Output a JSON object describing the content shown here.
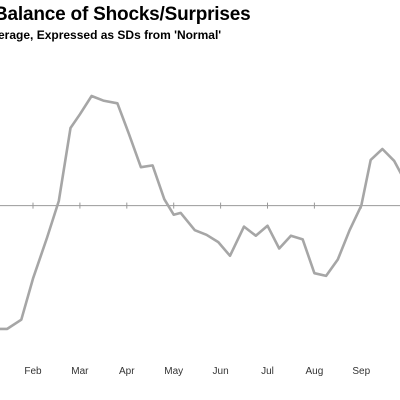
{
  "chart_data": {
    "type": "line",
    "title": "Balance of Shocks/Surprises",
    "subtitle": "erage, Expressed as SDs from  'Normal'",
    "xlabel": "",
    "ylabel": "",
    "x_ticks": [
      "Feb",
      "Mar",
      "Apr",
      "May",
      "Jun",
      "Jul",
      "Aug",
      "Sep"
    ],
    "baseline": 0,
    "ylim": [
      -1.45,
      1.2
    ],
    "grid": false,
    "line_color": "#a6a6a6",
    "baseline_color": "#999999",
    "series": [
      {
        "name": "",
        "points": [
          {
            "x": 0.0,
            "y": -1.25
          },
          {
            "x": 0.2,
            "y": -1.35
          },
          {
            "x": 0.45,
            "y": -1.35
          },
          {
            "x": 0.75,
            "y": -1.25
          },
          {
            "x": 1.0,
            "y": -0.8
          },
          {
            "x": 1.3,
            "y": -0.35
          },
          {
            "x": 1.55,
            "y": 0.05
          },
          {
            "x": 1.8,
            "y": 0.85
          },
          {
            "x": 2.0,
            "y": 1.0
          },
          {
            "x": 2.25,
            "y": 1.2
          },
          {
            "x": 2.5,
            "y": 1.15
          },
          {
            "x": 2.8,
            "y": 1.12
          },
          {
            "x": 3.05,
            "y": 0.78
          },
          {
            "x": 3.3,
            "y": 0.42
          },
          {
            "x": 3.55,
            "y": 0.44
          },
          {
            "x": 3.8,
            "y": 0.07
          },
          {
            "x": 4.0,
            "y": -0.1
          },
          {
            "x": 4.15,
            "y": -0.08
          },
          {
            "x": 4.45,
            "y": -0.27
          },
          {
            "x": 4.7,
            "y": -0.32
          },
          {
            "x": 4.95,
            "y": -0.4
          },
          {
            "x": 5.2,
            "y": -0.55
          },
          {
            "x": 5.5,
            "y": -0.23
          },
          {
            "x": 5.75,
            "y": -0.33
          },
          {
            "x": 6.0,
            "y": -0.22
          },
          {
            "x": 6.25,
            "y": -0.47
          },
          {
            "x": 6.5,
            "y": -0.33
          },
          {
            "x": 6.75,
            "y": -0.37
          },
          {
            "x": 7.0,
            "y": -0.74
          },
          {
            "x": 7.25,
            "y": -0.77
          },
          {
            "x": 7.5,
            "y": -0.59
          },
          {
            "x": 7.75,
            "y": -0.27
          },
          {
            "x": 8.0,
            "y": 0.0
          },
          {
            "x": 8.2,
            "y": 0.5
          },
          {
            "x": 8.45,
            "y": 0.62
          },
          {
            "x": 8.7,
            "y": 0.49
          },
          {
            "x": 8.95,
            "y": 0.25
          },
          {
            "x": 9.15,
            "y": 0.07
          },
          {
            "x": 9.35,
            "y": -0.47
          }
        ]
      }
    ]
  }
}
